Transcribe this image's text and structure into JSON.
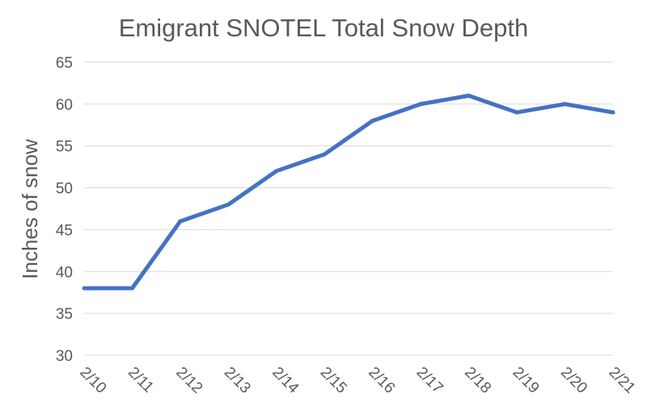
{
  "chart_data": {
    "type": "line",
    "title": "Emigrant SNOTEL Total Snow Depth",
    "xlabel": "",
    "ylabel": "Inches of snow",
    "categories": [
      "2/10",
      "2/11",
      "2/12",
      "2/13",
      "2/14",
      "2/15",
      "2/16",
      "2/17",
      "2/18",
      "2/19",
      "2/20",
      "2/21"
    ],
    "series": [
      {
        "values": [
          38,
          38,
          46,
          48,
          52,
          54,
          58,
          60,
          61,
          59,
          60,
          59
        ],
        "color": "#4472c4"
      }
    ],
    "ylim": [
      30,
      65
    ],
    "yticks": [
      30,
      35,
      40,
      45,
      50,
      55,
      60,
      65
    ],
    "grid": true,
    "legend": "none"
  }
}
